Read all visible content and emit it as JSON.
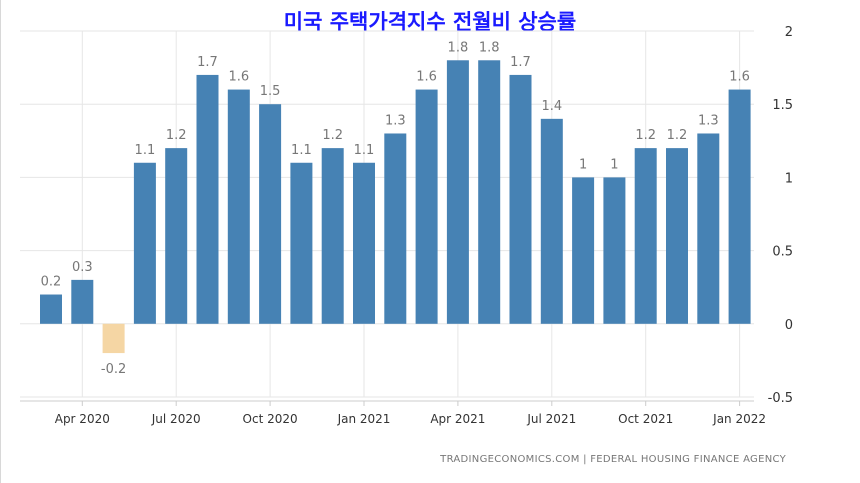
{
  "chart_data": {
    "type": "bar",
    "title": "미국 주택가격지수 전월비 상승률",
    "source": "TRADINGECONOMICS.COM  |  FEDERAL HOUSING FINANCE AGENCY",
    "x": [
      "2020-03",
      "2020-04",
      "2020-05",
      "2020-06",
      "2020-07",
      "2020-08",
      "2020-09",
      "2020-10",
      "2020-11",
      "2020-12",
      "2021-01",
      "2021-02",
      "2021-03",
      "2021-04",
      "2021-05",
      "2021-06",
      "2021-07",
      "2021-08",
      "2021-09",
      "2021-10",
      "2021-11",
      "2021-12",
      "2022-01"
    ],
    "values": [
      0.2,
      0.3,
      -0.2,
      1.1,
      1.2,
      1.7,
      1.6,
      1.5,
      1.1,
      1.2,
      1.1,
      1.3,
      1.6,
      1.8,
      1.8,
      1.7,
      1.4,
      1,
      1,
      1.2,
      1.2,
      1.3,
      1.6
    ],
    "data_labels": [
      "0.2",
      "0.3",
      "-0.2",
      "1.1",
      "1.2",
      "1.7",
      "1.6",
      "1.5",
      "1.1",
      "1.2",
      "1.1",
      "1.3",
      "1.6",
      "1.8",
      "1.8",
      "1.7",
      "1.4",
      "1",
      "1",
      "1.2",
      "1.2",
      "1.3",
      "1.6"
    ],
    "x_ticks": [
      {
        "x": "2020-04",
        "label": "Apr 2020"
      },
      {
        "x": "2020-07",
        "label": "Jul 2020"
      },
      {
        "x": "2020-10",
        "label": "Oct 2020"
      },
      {
        "x": "2021-01",
        "label": "Jan 2021"
      },
      {
        "x": "2021-04",
        "label": "Apr 2021"
      },
      {
        "x": "2021-07",
        "label": "Jul 2021"
      },
      {
        "x": "2021-10",
        "label": "Oct 2021"
      },
      {
        "x": "2022-01",
        "label": "Jan 2022"
      }
    ],
    "y_ticks": [
      {
        "value": 2,
        "label": "2"
      },
      {
        "value": 1.5,
        "label": "1.5"
      },
      {
        "value": 1,
        "label": "1"
      },
      {
        "value": 0.5,
        "label": "0.5"
      },
      {
        "value": 0,
        "label": "0"
      },
      {
        "value": -0.5,
        "label": "-0.5"
      }
    ],
    "ylim": [
      -0.5,
      2
    ],
    "y_axis_side": "right",
    "grid": true,
    "legend": "none",
    "colors": {
      "positive": "#4682b4",
      "negative": "#f5d6a4",
      "grid": "#e6e6e6",
      "axis": "#cccccc",
      "label": "#777777",
      "tick_label": "#333333",
      "title": "#1a1aff"
    }
  }
}
